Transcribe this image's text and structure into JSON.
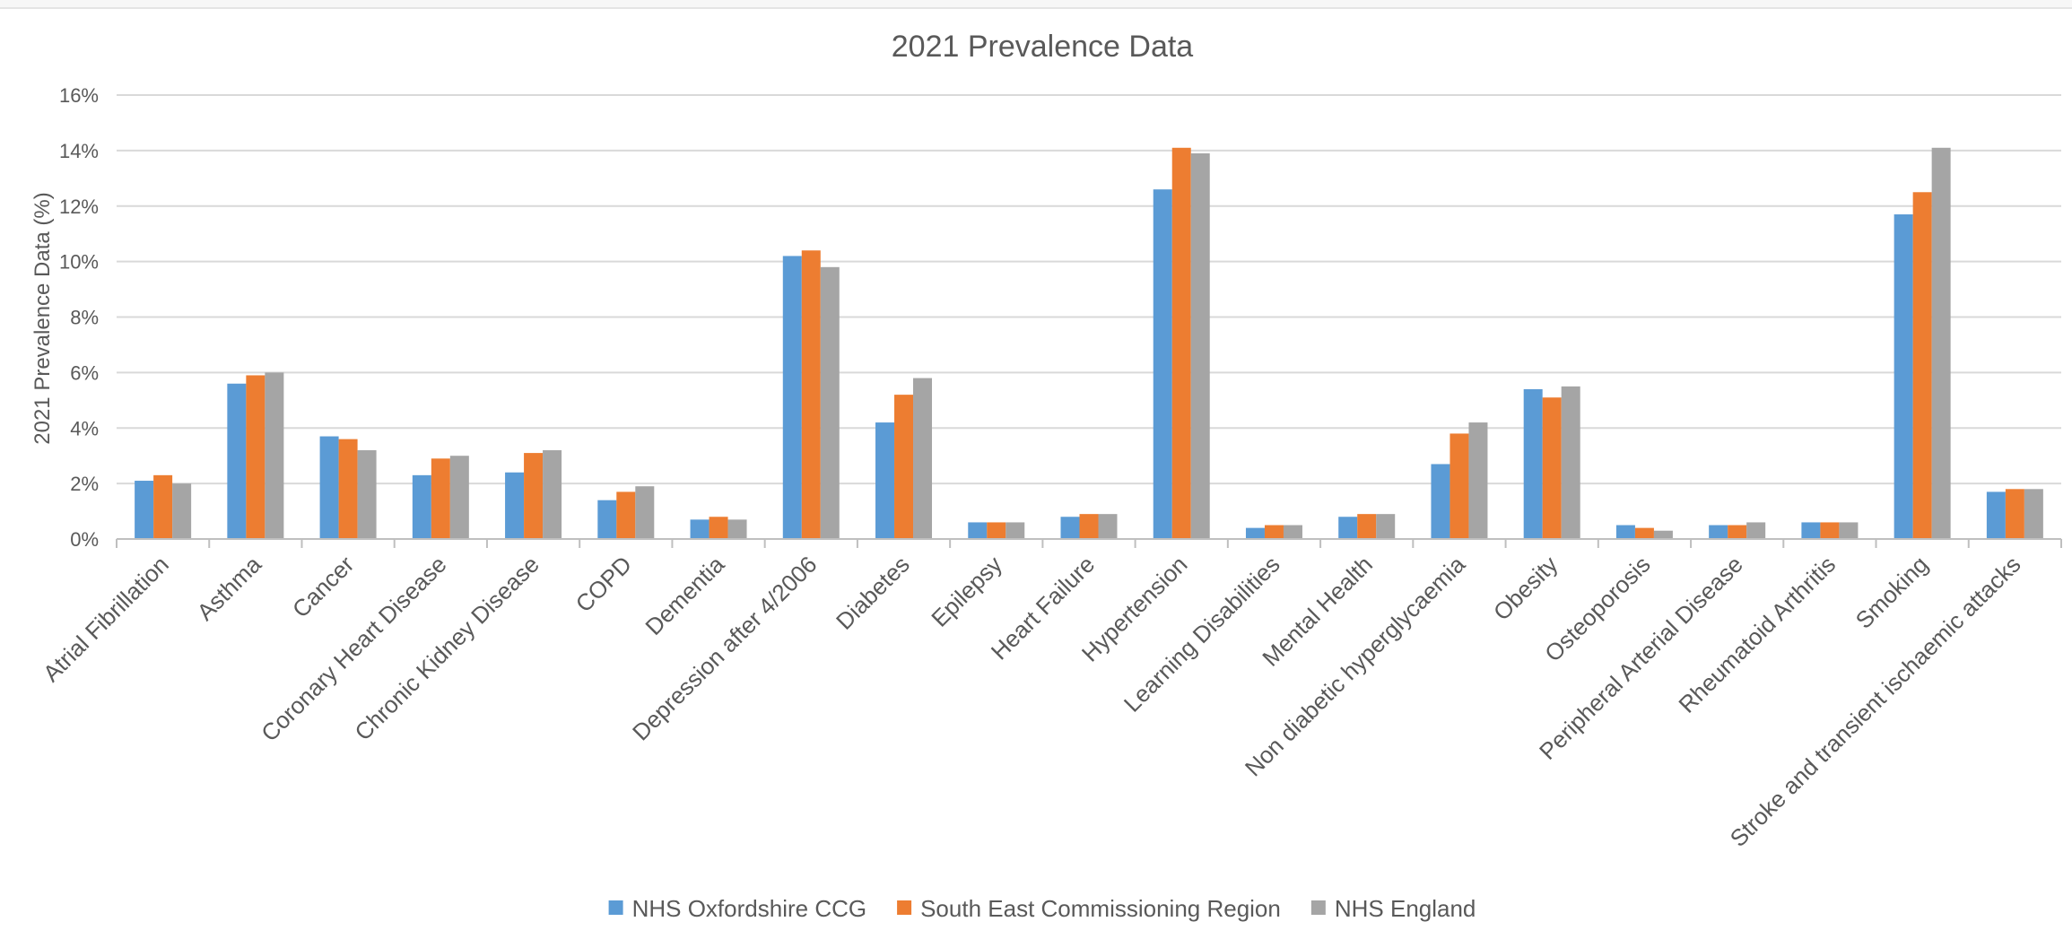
{
  "chart_data": {
    "type": "bar",
    "title": "2021 Prevalence Data",
    "xlabel": "",
    "ylabel": "2021 Prevalence Data (%)",
    "ylim": [
      0,
      16
    ],
    "yticks": [
      "0%",
      "2%",
      "4%",
      "6%",
      "8%",
      "10%",
      "12%",
      "14%",
      "16%"
    ],
    "grid": true,
    "legend_position": "bottom",
    "categories": [
      "Atrial Fibrillation",
      "Asthma",
      "Cancer",
      "Coronary Heart Disease",
      "Chronic Kidney Disease",
      "COPD",
      "Dementia",
      "Depression after 4/2006",
      "Diabetes",
      "Epilepsy",
      "Heart Failure",
      "Hypertension",
      "Learning Disabilities",
      "Mental Health",
      "Non diabetic hyperglycaemia",
      "Obesity",
      "Osteoporosis",
      "Peripheral Arterial Disease",
      "Rheumatoid Arthritis",
      "Smoking",
      "Stroke and transient ischaemic attacks"
    ],
    "series": [
      {
        "name": "NHS Oxfordshire CCG",
        "color": "#5b9bd5",
        "values": [
          2.1,
          5.6,
          3.7,
          2.3,
          2.4,
          1.4,
          0.7,
          10.2,
          4.2,
          0.6,
          0.8,
          12.6,
          0.4,
          0.8,
          2.7,
          5.4,
          0.5,
          0.5,
          0.6,
          11.7,
          1.7
        ]
      },
      {
        "name": "South East Commissioning Region",
        "color": "#ed7d31",
        "values": [
          2.3,
          5.9,
          3.6,
          2.9,
          3.1,
          1.7,
          0.8,
          10.4,
          5.2,
          0.6,
          0.9,
          14.1,
          0.5,
          0.9,
          3.8,
          5.1,
          0.4,
          0.5,
          0.6,
          12.5,
          1.8
        ]
      },
      {
        "name": "NHS England",
        "color": "#a5a5a5",
        "values": [
          2.0,
          6.0,
          3.2,
          3.0,
          3.2,
          1.9,
          0.7,
          9.8,
          5.8,
          0.6,
          0.9,
          13.9,
          0.5,
          0.9,
          4.2,
          5.5,
          0.3,
          0.6,
          0.6,
          14.1,
          1.8
        ]
      }
    ]
  }
}
